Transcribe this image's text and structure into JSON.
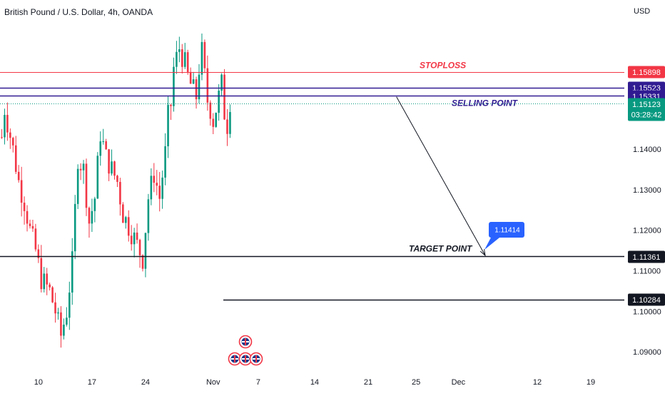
{
  "header": {
    "symbol_title": "British Pound / U.S. Dollar, 4h, OANDA",
    "currency": "USD"
  },
  "chart_data": {
    "type": "candlestick",
    "title": "British Pound / U.S. Dollar, 4h, OANDA",
    "ylabel": "USD",
    "ylim": [
      1.0835,
      1.1733
    ],
    "y_ticks": [
      {
        "value": 1.14,
        "label": "1.14000"
      },
      {
        "value": 1.13,
        "label": "1.13000"
      },
      {
        "value": 1.12,
        "label": "1.12000"
      },
      {
        "value": 1.11,
        "label": "1.11000"
      },
      {
        "value": 1.1,
        "label": "1.10000"
      },
      {
        "value": 1.09,
        "label": "1.09000"
      }
    ],
    "x_ticks": [
      {
        "index": 13,
        "label": "10"
      },
      {
        "index": 32,
        "label": "17"
      },
      {
        "index": 51,
        "label": "24"
      },
      {
        "index": 75,
        "label": "Nov"
      },
      {
        "index": 91,
        "label": "7"
      },
      {
        "index": 111,
        "label": "14"
      },
      {
        "index": 130,
        "label": "21"
      },
      {
        "index": 147,
        "label": "25"
      },
      {
        "index": 162,
        "label": "Dec"
      },
      {
        "index": 190,
        "label": "12"
      },
      {
        "index": 209,
        "label": "19"
      }
    ],
    "grid": false,
    "levels": [
      {
        "name": "stoploss",
        "value": 1.15898,
        "label": "1.15898",
        "text": "STOPLOSS",
        "color": "#f23645",
        "style": "solid"
      },
      {
        "name": "upper-zone",
        "value": 1.15523,
        "label": "1.15523",
        "color": "#311b92",
        "style": "solid"
      },
      {
        "name": "selling",
        "value": 1.15331,
        "label": "1.15331",
        "text": "SELLING POINT",
        "color": "#311b92",
        "style": "solid"
      },
      {
        "name": "last-price",
        "value": 1.15123,
        "label": "1.15123",
        "countdown": "03:28:42",
        "color": "#089981",
        "style": "dotted"
      },
      {
        "name": "target",
        "value": 1.11361,
        "label": "1.11361",
        "text": "TARGET POINT",
        "color": "#131722",
        "style": "solid"
      },
      {
        "name": "support",
        "value": 1.10284,
        "label": "1.10284",
        "color": "#131722",
        "style": "solid"
      }
    ],
    "projection": {
      "from": {
        "index": 137,
        "value": 1.1533
      },
      "to": {
        "index": 168,
        "value": 1.1136
      },
      "callout_label": "1.11414",
      "callout_color": "#2962ff"
    },
    "up_color": "#089981",
    "down_color": "#f23645",
    "anchors": [
      [
        0,
        1.143
      ],
      [
        1,
        1.15
      ],
      [
        4,
        1.14
      ],
      [
        6,
        1.132
      ],
      [
        8,
        1.127
      ],
      [
        10,
        1.12
      ],
      [
        12,
        1.115
      ],
      [
        14,
        1.108
      ],
      [
        17,
        1.105
      ],
      [
        19,
        1.1
      ],
      [
        21,
        1.094
      ],
      [
        23,
        1.1
      ],
      [
        25,
        1.112
      ],
      [
        27,
        1.138
      ],
      [
        29,
        1.135
      ],
      [
        31,
        1.122
      ],
      [
        33,
        1.128
      ],
      [
        35,
        1.144
      ],
      [
        37,
        1.138
      ],
      [
        39,
        1.135
      ],
      [
        41,
        1.132
      ],
      [
        43,
        1.124
      ],
      [
        45,
        1.121
      ],
      [
        47,
        1.118
      ],
      [
        50,
        1.113
      ],
      [
        52,
        1.128
      ],
      [
        54,
        1.134
      ],
      [
        56,
        1.128
      ],
      [
        58,
        1.139
      ],
      [
        59,
        1.148
      ],
      [
        60,
        1.151
      ],
      [
        61,
        1.16
      ],
      [
        63,
        1.165
      ],
      [
        65,
        1.161
      ],
      [
        66,
        1.158
      ],
      [
        67,
        1.156
      ],
      [
        69,
        1.153
      ],
      [
        70,
        1.16
      ],
      [
        71,
        1.164
      ],
      [
        72,
        1.158
      ],
      [
        73,
        1.152
      ],
      [
        74,
        1.15
      ],
      [
        75,
        1.147
      ],
      [
        77,
        1.153
      ],
      [
        78,
        1.156
      ],
      [
        79,
        1.149
      ],
      [
        80,
        1.146
      ],
      [
        81,
        1.152
      ]
    ],
    "events": {
      "index": 84,
      "label": "economic events"
    }
  }
}
